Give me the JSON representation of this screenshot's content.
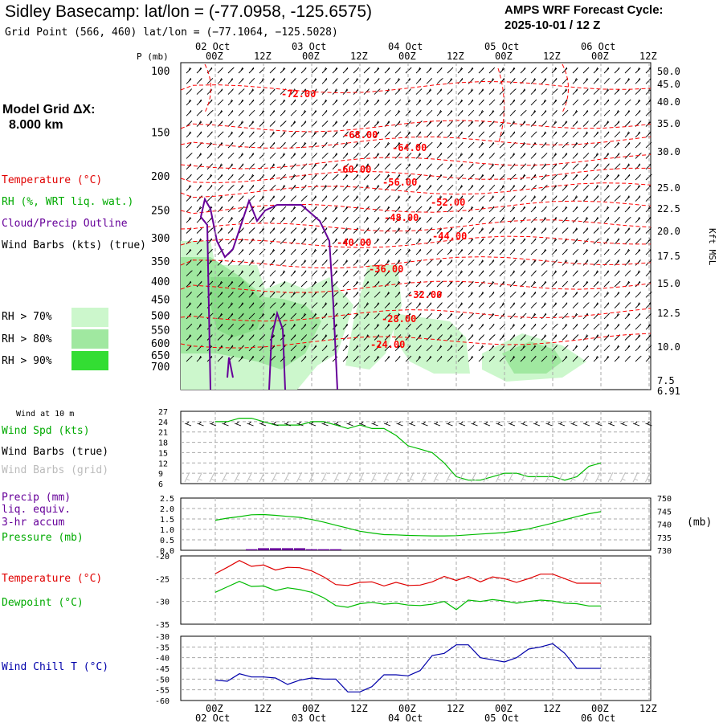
{
  "header": {
    "title": "Sidley Basecamp:  lat/lon = (-77.0958, -125.6575)",
    "subtitle": "Grid Point (566, 460) lat/lon = (−77.1064, −125.5028)",
    "cycle_line1": "AMPS WRF Forecast Cycle:",
    "cycle_line2": "2025-10-01 / 12  Z"
  },
  "left_panel": {
    "model_grid_line1": "Model Grid ΔX:",
    "model_grid_line2": "8.000 km",
    "temp_label": "Temperature (°C)",
    "rh_label": "RH (%, WRT liq. wat.)",
    "cloud_label": "Cloud/Precip Outline",
    "wind_label": "Wind Barbs (kts) (true)",
    "rh70": "RH > 70%",
    "rh80": "RH > 80%",
    "rh90": "RH > 90%"
  },
  "colors": {
    "temp": "#ff0000",
    "rh": "#00aa00",
    "cloud": "#660099",
    "rh70": "#ccf7cc",
    "rh80": "#a0e8a0",
    "rh90": "#33dd33",
    "windchill": "#0000aa",
    "grid": "#aaaaaa"
  },
  "time_axis": {
    "hour_labels": [
      "00Z",
      "12Z",
      "00Z",
      "12Z",
      "00Z",
      "12Z",
      "00Z",
      "12Z",
      "00Z",
      "12Z"
    ],
    "date_labels": [
      "02 Oct",
      "03 Oct",
      "04 Oct",
      "05 Oct",
      "06 Oct"
    ]
  },
  "chart_data": [
    {
      "type": "contour",
      "name": "cross_section",
      "ylabel": "P (mb)",
      "right_axis_label": "Kft MSL",
      "pressure_ticks": [
        100,
        150,
        200,
        250,
        300,
        350,
        400,
        450,
        500,
        550,
        600,
        650,
        700
      ],
      "kft_ticks": [
        "50.0",
        "45.0",
        "40.0",
        "35.0",
        "30.0",
        "25.0",
        "22.5",
        "20.0",
        "17.5",
        "15.0",
        "12.5",
        "10.0",
        "7.5",
        "6.91"
      ],
      "temperature_contour_labels": [
        "-72.00",
        "-68.00",
        "-64.00",
        "-60.00",
        "-56.00",
        "-52.00",
        "-48.00",
        "-44.00",
        "-40.00",
        "-36.00",
        "-32.00",
        "-28.00",
        "-24.00"
      ]
    },
    {
      "type": "line",
      "name": "wind_10m",
      "panel_label": "Wind at 10 m",
      "series_label": "Wind Spd (kts)",
      "barb_true_label": "Wind Barbs (true)",
      "barb_grid_label": "Wind Barbs (grid)",
      "y_ticks": [
        27,
        24,
        21,
        18,
        15,
        12,
        9,
        6
      ],
      "ylim": [
        6,
        27
      ],
      "x_hours": [
        0,
        3,
        6,
        9,
        12,
        15,
        18,
        21,
        24,
        27,
        30,
        33,
        36,
        39,
        42,
        45,
        48,
        51,
        54,
        57,
        60,
        63,
        66,
        69,
        72,
        75,
        78,
        81,
        84,
        87,
        90,
        93,
        96
      ],
      "values": [
        24,
        24,
        25,
        25,
        24,
        23,
        23,
        23,
        24,
        24,
        23,
        22,
        23,
        22,
        22,
        20,
        17,
        16,
        15,
        12,
        8,
        7,
        7,
        8,
        9,
        9,
        8,
        8,
        8,
        7,
        8,
        11,
        12
      ]
    },
    {
      "type": "line",
      "name": "precip_pressure",
      "precip_label": "Precip (mm)",
      "precip_label2": "liq. equiv.",
      "precip_label3": "3-hr accum",
      "pressure_label": "Pressure (mb)",
      "right_unit": "(mb)",
      "precip_ticks": [
        "2.5",
        "2.0",
        "1.5",
        "1.0",
        "0.5",
        "0.0"
      ],
      "precip_ylim": [
        0,
        2.5
      ],
      "pressure_ticks": [
        "750",
        "745",
        "740",
        "735",
        "730"
      ],
      "pressure_ylim": [
        730,
        750
      ],
      "x_hours": [
        0,
        3,
        6,
        9,
        12,
        15,
        18,
        21,
        24,
        27,
        30,
        33,
        36,
        39,
        42,
        45,
        48,
        51,
        54,
        57,
        60,
        63,
        66,
        69,
        72,
        75,
        78,
        81,
        84,
        87,
        90,
        93,
        96
      ],
      "pressure_values": [
        741.5,
        742.3,
        742.9,
        743.6,
        743.7,
        743.4,
        743.0,
        742.6,
        741.8,
        740.8,
        739.6,
        738.5,
        737.3,
        736.6,
        736.0,
        735.9,
        735.7,
        735.6,
        735.5,
        735.5,
        735.6,
        735.9,
        736.2,
        736.5,
        736.8,
        737.4,
        738.2,
        739.3,
        740.4,
        741.7,
        742.9,
        744.0,
        744.8
      ],
      "precip_values": [
        0,
        0,
        0,
        0.05,
        0.1,
        0.1,
        0.1,
        0.1,
        0.05,
        0.05,
        0.05,
        0,
        0,
        0,
        0,
        0,
        0,
        0,
        0,
        0,
        0,
        0,
        0,
        0,
        0,
        0,
        0,
        0,
        0,
        0,
        0,
        0,
        0
      ]
    },
    {
      "type": "line",
      "name": "temperature_dewpoint",
      "temp_label": "Temperature (°C)",
      "dew_label": "Dewpoint (°C)",
      "y_ticks": [
        "-20",
        "-25",
        "-30",
        "-35"
      ],
      "ylim": [
        -35,
        -20
      ],
      "x_hours": [
        0,
        3,
        6,
        9,
        12,
        15,
        18,
        21,
        24,
        27,
        30,
        33,
        36,
        39,
        42,
        45,
        48,
        51,
        54,
        57,
        60,
        63,
        66,
        69,
        72,
        75,
        78,
        81,
        84,
        87,
        90,
        93,
        96
      ],
      "temperature": [
        -23.9,
        -22.5,
        -21.0,
        -22.3,
        -22.0,
        -23.1,
        -22.5,
        -22.6,
        -23.3,
        -24.6,
        -26.3,
        -26.5,
        -25.8,
        -25.7,
        -26.6,
        -25.8,
        -26.5,
        -26.4,
        -25.7,
        -24.5,
        -25.4,
        -24.5,
        -25.7,
        -24.6,
        -25.0,
        -25.8,
        -25.0,
        -24.0,
        -24.0,
        -25.0,
        -26.0,
        -26.0,
        -26.0
      ],
      "dewpoint": [
        -28.0,
        -26.8,
        -25.6,
        -26.7,
        -26.6,
        -27.6,
        -27.0,
        -27.4,
        -28.0,
        -29.2,
        -30.9,
        -31.3,
        -30.5,
        -30.2,
        -30.6,
        -30.4,
        -30.8,
        -30.9,
        -30.6,
        -30.0,
        -31.8,
        -29.7,
        -30.0,
        -29.6,
        -29.9,
        -30.4,
        -30.0,
        -29.7,
        -29.9,
        -30.4,
        -30.5,
        -31.0,
        -31.0
      ]
    },
    {
      "type": "line",
      "name": "wind_chill",
      "label": "Wind Chill T (°C)",
      "y_ticks": [
        "-30",
        "-35",
        "-40",
        "-45",
        "-50",
        "-55",
        "-60"
      ],
      "ylim": [
        -60,
        -30
      ],
      "x_hours": [
        0,
        3,
        6,
        9,
        12,
        15,
        18,
        21,
        24,
        27,
        30,
        33,
        36,
        39,
        42,
        45,
        48,
        51,
        54,
        57,
        60,
        63,
        66,
        69,
        72,
        75,
        78,
        81,
        84,
        87,
        90,
        93,
        96
      ],
      "values": [
        -50.5,
        -51,
        -47.5,
        -49,
        -49,
        -49.5,
        -52.5,
        -50.5,
        -49.5,
        -50,
        -50,
        -56,
        -56,
        -53.5,
        -48,
        -48,
        -48.5,
        -46,
        -39,
        -38,
        -34,
        -34,
        -40,
        -41,
        -42,
        -40,
        -36,
        -35,
        -33.5,
        -38,
        -45,
        -45,
        -45
      ]
    }
  ]
}
